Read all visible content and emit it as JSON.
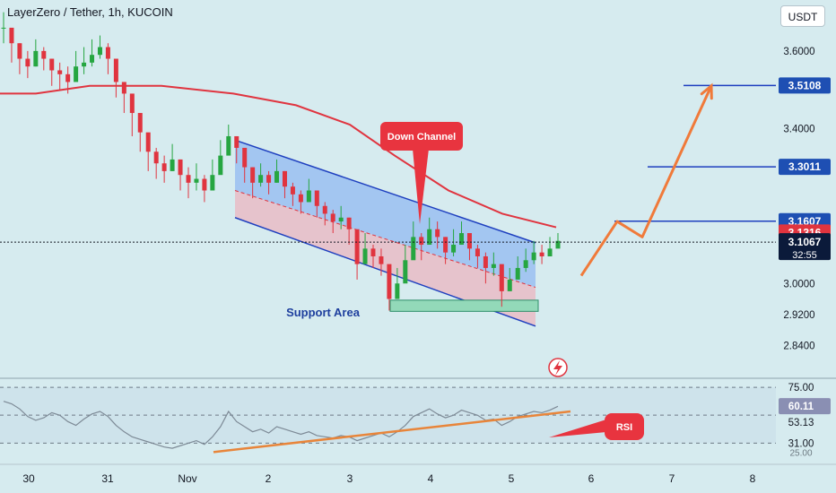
{
  "header": {
    "title": "LayerZero / Tether, 1h, KUCOIN",
    "currency": "USDT"
  },
  "chart_data": {
    "type": "candlestick",
    "title": "LayerZero / Tether, 1h, KUCOIN",
    "price_axis": {
      "ylim": [
        2.76,
        3.72
      ],
      "ticks": [
        "3.6000",
        "3.4000",
        "3.3011",
        "3.1316",
        "2.9200",
        "2.8400",
        "3.0000"
      ],
      "tick_values": [
        3.6,
        3.4,
        3.0,
        2.92,
        2.84
      ]
    },
    "price_labels": [
      {
        "text": "3.5108",
        "value": 3.5108,
        "color": "#1e4fb3"
      },
      {
        "text": "3.3011",
        "value": 3.3011,
        "color": "#1e4fb3"
      },
      {
        "text": "3.1607",
        "value": 3.1607,
        "color": "#1e4fb3"
      },
      {
        "text": "3.1316",
        "value": 3.1316,
        "color": "#e0343f"
      },
      {
        "text": "3.1067",
        "value": 3.1067,
        "color": "#0b1a3a"
      }
    ],
    "countdown": "32:55",
    "time_axis": {
      "ticks": [
        "30",
        "31",
        "Nov",
        "2",
        "3",
        "4",
        "5",
        "6",
        "7",
        "8"
      ]
    },
    "moving_average": {
      "color": "#e0343f",
      "points": [
        [
          0,
          3.49
        ],
        [
          40,
          3.49
        ],
        [
          100,
          3.51
        ],
        [
          180,
          3.51
        ],
        [
          260,
          3.49
        ],
        [
          330,
          3.46
        ],
        [
          390,
          3.41
        ],
        [
          440,
          3.33
        ],
        [
          500,
          3.24
        ],
        [
          560,
          3.18
        ],
        [
          620,
          3.145
        ]
      ]
    },
    "candles": [
      [
        3.66,
        3.7,
        3.62
      ],
      [
        3.62,
        3.65,
        3.57
      ],
      [
        3.58,
        3.62,
        3.54
      ],
      [
        3.56,
        3.6,
        3.53
      ],
      [
        3.6,
        3.63,
        3.56
      ],
      [
        3.58,
        3.61,
        3.55
      ],
      [
        3.55,
        3.58,
        3.51
      ],
      [
        3.54,
        3.57,
        3.5
      ],
      [
        3.52,
        3.56,
        3.49
      ],
      [
        3.56,
        3.6,
        3.53
      ],
      [
        3.57,
        3.61,
        3.54
      ],
      [
        3.59,
        3.63,
        3.56
      ],
      [
        3.61,
        3.64,
        3.58
      ],
      [
        3.58,
        3.62,
        3.54
      ],
      [
        3.52,
        3.56,
        3.48
      ],
      [
        3.49,
        3.52,
        3.44
      ],
      [
        3.44,
        3.47,
        3.38
      ],
      [
        3.39,
        3.43,
        3.34
      ],
      [
        3.34,
        3.38,
        3.29
      ],
      [
        3.31,
        3.35,
        3.27
      ],
      [
        3.29,
        3.33,
        3.26
      ],
      [
        3.32,
        3.36,
        3.29
      ],
      [
        3.28,
        3.32,
        3.24
      ],
      [
        3.26,
        3.3,
        3.22
      ],
      [
        3.27,
        3.31,
        3.24
      ],
      [
        3.24,
        3.28,
        3.21
      ],
      [
        3.28,
        3.32,
        3.25
      ],
      [
        3.33,
        3.37,
        3.3
      ],
      [
        3.38,
        3.41,
        3.35
      ],
      [
        3.35,
        3.38,
        3.31
      ],
      [
        3.3,
        3.33,
        3.26
      ],
      [
        3.26,
        3.3,
        3.22
      ],
      [
        3.28,
        3.31,
        3.25
      ],
      [
        3.26,
        3.29,
        3.23
      ],
      [
        3.29,
        3.32,
        3.26
      ],
      [
        3.25,
        3.29,
        3.22
      ],
      [
        3.23,
        3.26,
        3.2
      ],
      [
        3.21,
        3.24,
        3.18
      ],
      [
        3.24,
        3.27,
        3.21
      ],
      [
        3.2,
        3.24,
        3.17
      ],
      [
        3.18,
        3.21,
        3.15
      ],
      [
        3.16,
        3.19,
        3.13
      ],
      [
        3.17,
        3.2,
        3.14
      ],
      [
        3.14,
        3.17,
        3.1
      ],
      [
        3.05,
        3.12,
        3.01
      ],
      [
        3.09,
        3.13,
        3.06
      ],
      [
        3.07,
        3.1,
        3.04
      ],
      [
        3.05,
        3.09,
        3.02
      ],
      [
        2.96,
        3.03,
        2.93
      ],
      [
        3.0,
        3.04,
        2.96
      ],
      [
        3.06,
        3.1,
        3.02
      ],
      [
        3.12,
        3.16,
        3.08
      ],
      [
        3.1,
        3.13,
        3.06
      ],
      [
        3.14,
        3.17,
        3.11
      ],
      [
        3.12,
        3.16,
        3.09
      ],
      [
        3.08,
        3.12,
        3.05
      ],
      [
        3.1,
        3.14,
        3.07
      ],
      [
        3.13,
        3.16,
        3.1
      ],
      [
        3.09,
        3.12,
        3.06
      ],
      [
        3.07,
        3.1,
        3.04
      ],
      [
        3.04,
        3.08,
        3.0
      ],
      [
        3.05,
        3.08,
        3.02
      ],
      [
        2.98,
        3.03,
        2.94
      ],
      [
        3.01,
        3.04,
        2.98
      ],
      [
        3.04,
        3.07,
        3.01
      ],
      [
        3.06,
        3.09,
        3.03
      ],
      [
        3.08,
        3.11,
        3.05
      ],
      [
        3.07,
        3.1,
        3.05
      ],
      [
        3.09,
        3.12,
        3.07
      ],
      [
        3.11,
        3.13,
        3.1
      ]
    ],
    "down_channel": {
      "label": "Down Channel",
      "upper": [
        [
          262,
          3.37
        ],
        [
          597,
          3.105
        ]
      ],
      "middle": [
        [
          262,
          3.24
        ],
        [
          597,
          2.99
        ]
      ],
      "lower": [
        [
          262,
          3.17
        ],
        [
          597,
          2.89
        ]
      ]
    },
    "support_area": {
      "label": "Support Area",
      "x_from": 435,
      "x_to": 600,
      "y_from": 2.935,
      "y_to": 2.95
    },
    "horizontal_levels": [
      {
        "value": 3.5108,
        "x_from": 762
      },
      {
        "value": 3.3011,
        "x_from": 722
      },
      {
        "value": 3.1607,
        "x_from": 685
      }
    ],
    "projection_path": [
      [
        648,
        3.02
      ],
      [
        688,
        3.16
      ],
      [
        716,
        3.12
      ],
      [
        793,
        3.51
      ]
    ],
    "rsi": {
      "label": "RSI",
      "levels": [
        "75.00",
        "60.11",
        "53.13",
        "31.00",
        "25.00"
      ],
      "level_values": [
        75,
        53.13,
        31
      ],
      "current": 60.11,
      "ylim": [
        20,
        80
      ],
      "values": [
        64,
        62,
        58,
        52,
        49,
        51,
        55,
        53,
        48,
        45,
        50,
        54,
        56,
        52,
        45,
        40,
        36,
        34,
        32,
        30,
        28,
        27,
        29,
        31,
        33,
        30,
        36,
        44,
        56,
        48,
        44,
        40,
        42,
        39,
        44,
        42,
        40,
        38,
        40,
        37,
        36,
        35,
        37,
        36,
        33,
        35,
        37,
        39,
        36,
        40,
        45,
        52,
        55,
        58,
        54,
        51,
        53,
        57,
        55,
        53,
        49,
        50,
        45,
        48,
        52,
        54,
        56,
        55,
        57,
        60
      ],
      "trendline": [
        [
          238,
          24
        ],
        [
          636,
          56
        ]
      ]
    }
  }
}
